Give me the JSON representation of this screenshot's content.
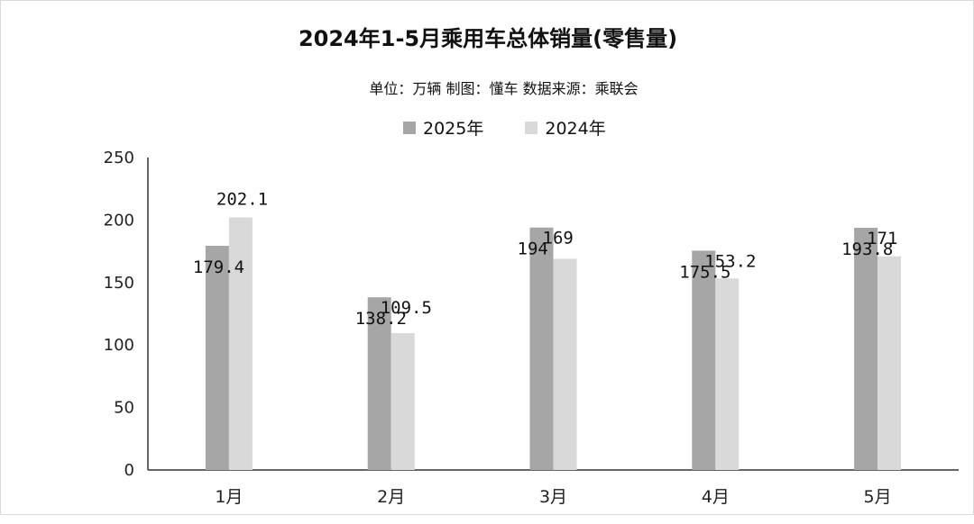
{
  "chart_data": {
    "type": "bar",
    "title": "2024年1-5月乘用车总体销量(零售量)",
    "subtitle": "单位：万辆 制图：懂车 数据来源：乘联会",
    "categories": [
      "1月",
      "2月",
      "3月",
      "4月",
      "5月"
    ],
    "series": [
      {
        "name": "2025年",
        "values": [
          179.4,
          138.2,
          194,
          175.5,
          193.8
        ],
        "labels": [
          "179.4",
          "138.2",
          "194",
          "175.5",
          "193.8"
        ],
        "color": "#a6a6a6"
      },
      {
        "name": "2024年",
        "values": [
          202.1,
          109.5,
          169,
          153.2,
          171
        ],
        "labels": [
          "202.1",
          "109.5",
          "169",
          "153.2",
          "171"
        ],
        "color": "#d9d9d9"
      }
    ],
    "yticks": [
      "0",
      "50",
      "100",
      "150",
      "200",
      "250"
    ],
    "ylim": [
      0,
      250
    ],
    "legend_position": "top-center",
    "grid": false
  }
}
